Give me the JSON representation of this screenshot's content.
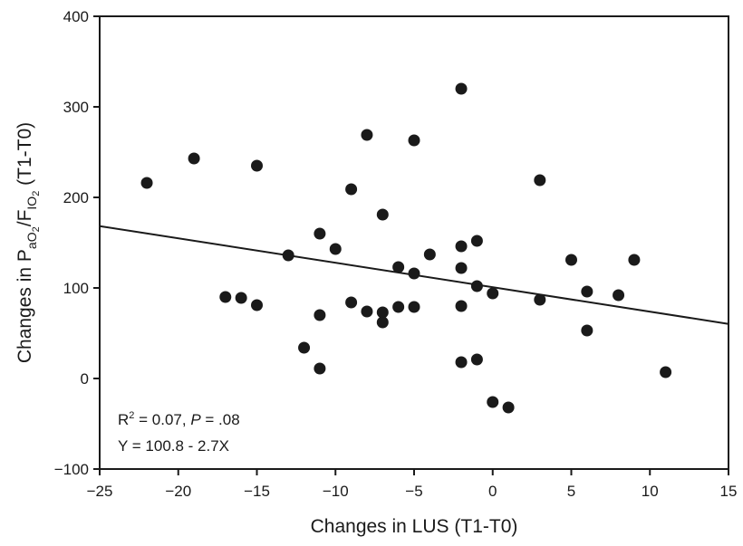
{
  "chart_data": {
    "type": "scatter",
    "title": "",
    "xlabel": "Changes in LUS (T1-T0)",
    "ylabel": {
      "prefix": "Changes in P",
      "sub1": "aO",
      "sub1b": "2",
      "mid": "/F",
      "sub2": "IO",
      "sub2b": "2",
      "suffix": " (T1-T0)"
    },
    "xlim": [
      -25,
      15
    ],
    "ylim": [
      -100,
      400
    ],
    "xticks": [
      -25,
      -20,
      -15,
      -10,
      -5,
      0,
      5,
      10,
      15
    ],
    "yticks": [
      -100,
      0,
      100,
      200,
      300,
      400
    ],
    "xtick_labels": [
      "−25",
      "−20",
      "−15",
      "−10",
      "−5",
      "0",
      "5",
      "10",
      "15"
    ],
    "ytick_labels": [
      "−100",
      "0",
      "100",
      "200",
      "300",
      "400"
    ],
    "grid": false,
    "legend": "none",
    "colors": {
      "points": "#1a1a1a",
      "line": "#1a1a1a",
      "axes": "#1a1a1a"
    },
    "points": [
      {
        "x": -22,
        "y": 216
      },
      {
        "x": -19,
        "y": 243
      },
      {
        "x": -17,
        "y": 90
      },
      {
        "x": -16,
        "y": 89
      },
      {
        "x": -15,
        "y": 235
      },
      {
        "x": -15,
        "y": 81
      },
      {
        "x": -13,
        "y": 136
      },
      {
        "x": -12,
        "y": 34
      },
      {
        "x": -11,
        "y": 160
      },
      {
        "x": -11,
        "y": 70
      },
      {
        "x": -11,
        "y": 11
      },
      {
        "x": -10,
        "y": 143
      },
      {
        "x": -9,
        "y": 209
      },
      {
        "x": -9,
        "y": 84
      },
      {
        "x": -8,
        "y": 269
      },
      {
        "x": -8,
        "y": 74
      },
      {
        "x": -7,
        "y": 181
      },
      {
        "x": -7,
        "y": 73
      },
      {
        "x": -7,
        "y": 62
      },
      {
        "x": -6,
        "y": 123
      },
      {
        "x": -6,
        "y": 79
      },
      {
        "x": -5,
        "y": 263
      },
      {
        "x": -5,
        "y": 116
      },
      {
        "x": -5,
        "y": 79
      },
      {
        "x": -4,
        "y": 137
      },
      {
        "x": -2,
        "y": 320
      },
      {
        "x": -2,
        "y": 146
      },
      {
        "x": -2,
        "y": 122
      },
      {
        "x": -2,
        "y": 80
      },
      {
        "x": -2,
        "y": 18
      },
      {
        "x": -1,
        "y": 152
      },
      {
        "x": -1,
        "y": 102
      },
      {
        "x": -1,
        "y": 21
      },
      {
        "x": 0,
        "y": 94
      },
      {
        "x": 0,
        "y": -26
      },
      {
        "x": 1,
        "y": -32
      },
      {
        "x": 3,
        "y": 219
      },
      {
        "x": 3,
        "y": 87
      },
      {
        "x": 5,
        "y": 131
      },
      {
        "x": 6,
        "y": 96
      },
      {
        "x": 6,
        "y": 53
      },
      {
        "x": 8,
        "y": 92
      },
      {
        "x": 9,
        "y": 131
      },
      {
        "x": 11,
        "y": 7
      }
    ],
    "regression": {
      "intercept": 100.8,
      "slope": -2.7,
      "x_range": [
        -25,
        15
      ]
    },
    "annotations": {
      "r2_prefix": "R",
      "r2_sup": "2",
      "r2_value": " = 0.07, ",
      "p_label": "P",
      "p_value": " = .08",
      "equation": "Y = 100.8 - 2.7X"
    }
  }
}
